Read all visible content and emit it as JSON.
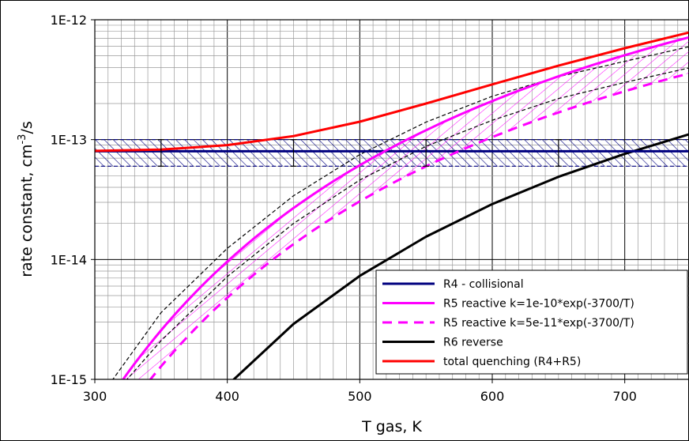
{
  "chart_data": {
    "type": "line",
    "title": "",
    "xlabel": "T gas, K",
    "ylabel_main": "rate constant, cm",
    "ylabel_sup": "-3",
    "ylabel_tail": "/s",
    "xlim": [
      300,
      750
    ],
    "ylim": [
      1e-15,
      1e-12
    ],
    "yscale": "log",
    "grid": true,
    "legend_position": "bottom-right",
    "x_ticks": [
      300,
      400,
      500,
      600,
      700
    ],
    "y_ticks": [
      {
        "value": 1e-12,
        "label": "1E-12"
      },
      {
        "value": 1e-13,
        "label": "1E-13"
      },
      {
        "value": 1e-14,
        "label": "1E-14"
      },
      {
        "value": 1e-15,
        "label": "1E-15"
      }
    ],
    "series": [
      {
        "name": "R4 - collisional",
        "color": "#00007f",
        "dash": "solid",
        "x": [
          300,
          750
        ],
        "y": [
          8e-14,
          8e-14
        ],
        "band": {
          "low": [
            6e-14,
            6e-14
          ],
          "high": [
            1e-13,
            1e-13
          ]
        }
      },
      {
        "name": "R5 reactive k=1e-10*exp(-3700/T)",
        "color": "#ff00ff",
        "dash": "solid",
        "formula": {
          "A": 1e-10,
          "E": 3700
        }
      },
      {
        "name": "R5 reactive k=5e-11*exp(-3700/T)",
        "color": "#ff00ff",
        "dash": "dashed",
        "formula": {
          "A": 5e-11,
          "E": 3700
        }
      },
      {
        "name": "R6 reverse",
        "color": "#000000",
        "dash": "solid",
        "x": [
          400,
          450,
          500,
          550,
          600,
          650,
          700,
          750
        ],
        "y": [
          8.9e-16,
          2.9e-15,
          7.3e-15,
          1.55e-14,
          2.9e-14,
          4.9e-14,
          7.6e-14,
          1.12e-13
        ]
      },
      {
        "name": "total quenching (R4+R5)",
        "color": "#ff0000",
        "dash": "solid",
        "x": [
          300,
          350,
          400,
          450,
          500,
          550,
          600,
          650,
          700,
          750
        ],
        "y": [
          8.06e-14,
          8.26e-14,
          9e-14,
          1.07e-13,
          1.41e-13,
          2e-13,
          2.89e-13,
          4.14e-13,
          5.79e-13,
          7.9e-13
        ]
      },
      {
        "name": "",
        "color": "#000000",
        "dash": "fine-dashed",
        "x": [
          310,
          350,
          400,
          450,
          500,
          550,
          600,
          650,
          700,
          750
        ],
        "y": [
          8.8e-16,
          3.6e-15,
          1.24e-14,
          3.4e-14,
          7.5e-14,
          1.4e-13,
          2.3e-13,
          3.35e-13,
          4.5e-13,
          6e-13
        ]
      },
      {
        "name": "",
        "color": "#000000",
        "dash": "fine-dashed",
        "x": [
          320,
          350,
          400,
          450,
          500,
          550,
          600,
          650,
          700,
          750
        ],
        "y": [
          8.8e-16,
          2.1e-15,
          7.2e-15,
          2e-14,
          4.6e-14,
          8.8e-14,
          1.45e-13,
          2.2e-13,
          3e-13,
          4e-13
        ]
      }
    ]
  }
}
